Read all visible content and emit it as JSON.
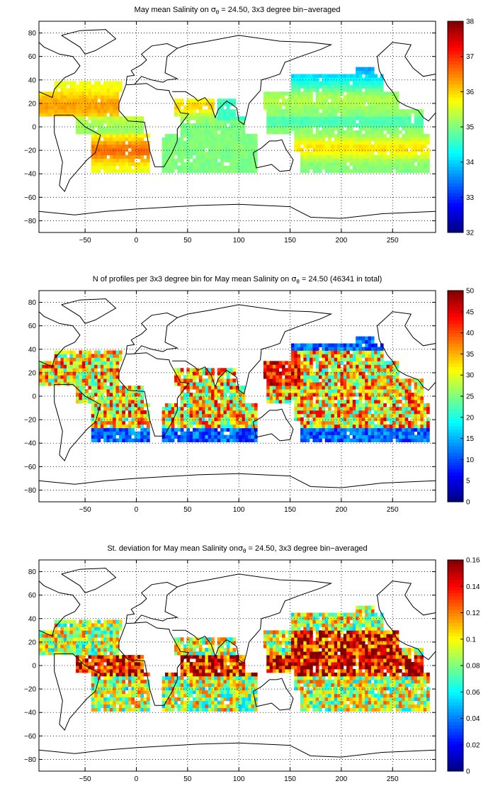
{
  "colors": {
    "background": "#ffffff",
    "land_outline": "#000000",
    "grid": "#000000",
    "colormap": "jet"
  },
  "chart_data": [
    {
      "type": "heatmap",
      "title_pre": "May mean Salinity on ",
      "title_sym": "σ",
      "title_sub": "θ",
      "title_post": " = 24.50, 3x3 degree bin−averaged",
      "xlim": [
        -95,
        292
      ],
      "ylim": [
        -90,
        90
      ],
      "xticks": [
        -50,
        0,
        50,
        100,
        150,
        200,
        250
      ],
      "yticks": [
        -80,
        -60,
        -40,
        -20,
        0,
        20,
        40,
        60,
        80
      ],
      "grid": true,
      "colorbar": {
        "min": 32,
        "max": 38,
        "ticks": [
          32,
          33,
          34,
          35,
          36,
          37,
          38
        ]
      },
      "field": "salinity_mean",
      "values_note": ""
    },
    {
      "type": "heatmap",
      "title_pre": "N of profiles per 3x3 degree bin for May mean Salinity on ",
      "title_sym": "σ",
      "title_sub": "θ",
      "title_post": " = 24.50 (46341 in total)",
      "xlim": [
        -95,
        292
      ],
      "ylim": [
        -90,
        90
      ],
      "xticks": [
        -50,
        0,
        50,
        100,
        150,
        200,
        250
      ],
      "yticks": [
        -80,
        -60,
        -40,
        -20,
        0,
        20,
        40,
        60,
        80
      ],
      "grid": true,
      "colorbar": {
        "min": 0,
        "max": 50,
        "ticks": [
          0,
          5,
          10,
          15,
          20,
          25,
          30,
          35,
          40,
          45,
          50
        ]
      },
      "field": "profile_count",
      "values_note": ""
    },
    {
      "type": "heatmap",
      "title_pre": "St. deviation for May mean Salinity on",
      "title_sym": "σ",
      "title_sub": "θ",
      "title_post": " = 24.50, 3x3 degree bin−averaged",
      "xlim": [
        -95,
        292
      ],
      "ylim": [
        -90,
        90
      ],
      "xticks": [
        -50,
        0,
        50,
        100,
        150,
        200,
        250
      ],
      "yticks": [
        -80,
        -60,
        -40,
        -20,
        0,
        20,
        40,
        60,
        80
      ],
      "grid": true,
      "colorbar": {
        "min": 0,
        "max": 0.16,
        "ticks": [
          0,
          0.02,
          0.04,
          0.06,
          0.08,
          0.1,
          0.12,
          0.14,
          0.16
        ]
      },
      "field": "salinity_std",
      "values_note": ""
    }
  ]
}
